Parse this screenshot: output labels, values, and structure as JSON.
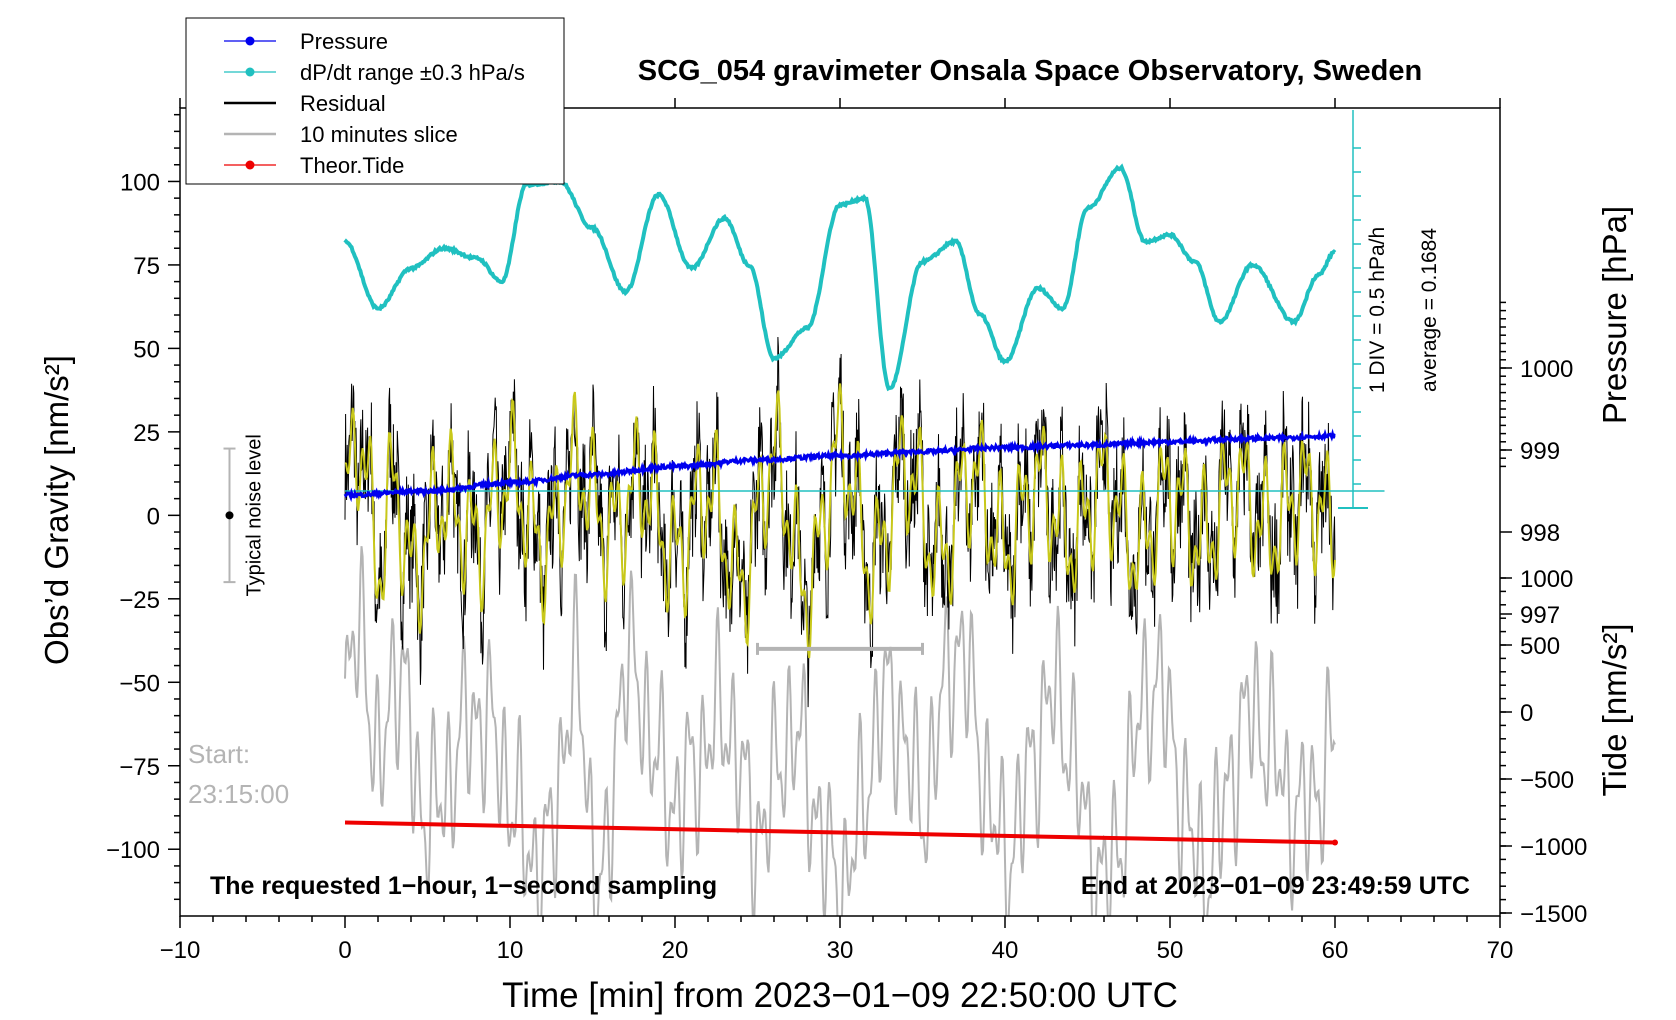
{
  "chart_data": {
    "type": "line",
    "title": "SCG_054 gravimeter Onsala Space Observatory, Sweden",
    "xlabel": "Time [min] from 2023−01−09 22:50:00 UTC",
    "ylabel_left": "Obs’d Gravity [nm/s²]",
    "ylabel_right_top": "Pressure [hPa]",
    "ylabel_right_bottom": "Tide [nm/s²]",
    "xlim": [
      -10,
      70
    ],
    "ylim": [
      -120,
      122
    ],
    "x_ticks": [
      -10,
      0,
      10,
      20,
      30,
      40,
      50,
      60,
      70
    ],
    "x_tick_labels": [
      "−10",
      "0",
      "10",
      "20",
      "30",
      "40",
      "50",
      "60",
      "70"
    ],
    "y_ticks": [
      100,
      75,
      50,
      25,
      0,
      -25,
      -50,
      -75,
      -100
    ],
    "y_tick_labels": [
      "100",
      "75",
      "50",
      "25",
      "0",
      "−25",
      "−50",
      "−75",
      "−100"
    ],
    "pressure_ticks": [
      1000,
      999,
      998,
      997
    ],
    "pressure_tick_labels": [
      "1000",
      "999",
      "998",
      "997"
    ],
    "tide_ticks": [
      1000,
      500,
      0,
      -500,
      -1000,
      -1500
    ],
    "tide_tick_labels": [
      "1000",
      "500",
      "0",
      "−500",
      "−1000",
      "−1500"
    ],
    "legend": [
      {
        "name": "Pressure",
        "color": "#0000ee",
        "marker": "dot"
      },
      {
        "name": "dP/dt range ±0.3 hPa/s",
        "color": "#20c0c0",
        "marker": "dot"
      },
      {
        "name": "Residual",
        "color": "#000000",
        "marker": "line"
      },
      {
        "name": "10 minutes slice",
        "color": "#b4b4b4",
        "marker": "line"
      },
      {
        "name": "Theor.Tide",
        "color": "#ee0000",
        "marker": "dot"
      }
    ],
    "legend_position": "top-left",
    "series": [
      {
        "name": "Pressure",
        "axis": "pressure_hPa",
        "x": [
          0,
          5,
          10,
          15,
          20,
          25,
          30,
          35,
          40,
          45,
          50,
          55,
          60
        ],
        "values": [
          998.45,
          998.5,
          998.6,
          998.7,
          998.8,
          998.88,
          998.93,
          998.98,
          999.03,
          999.06,
          999.1,
          999.14,
          999.17
        ]
      },
      {
        "name": "dP/dt",
        "axis": "gravity_scale",
        "x": [
          0,
          2,
          4,
          6,
          8,
          9.5,
          11,
          13,
          15,
          17,
          19,
          21,
          23,
          24.5,
          26,
          28,
          30,
          31.5,
          33,
          35,
          37,
          38.5,
          40,
          42,
          43.5,
          45,
          47,
          48.5,
          50,
          51.5,
          53,
          55,
          57.5,
          59,
          60
        ],
        "values": [
          82,
          62,
          74,
          80,
          77,
          70,
          99,
          100,
          86,
          67,
          96,
          74,
          89,
          75,
          47,
          56,
          93,
          95,
          38,
          76,
          82,
          60,
          46,
          68,
          62,
          92,
          104,
          82,
          84,
          76,
          58,
          75,
          58,
          72,
          79
        ]
      },
      {
        "name": "Residual",
        "axis": "gravity",
        "x": [
          0,
          1,
          2,
          3,
          4,
          6,
          8,
          10,
          12,
          14,
          16,
          18,
          20,
          22,
          24,
          26,
          28,
          30,
          32,
          34,
          36,
          38,
          40,
          42,
          44,
          46,
          48,
          50,
          52,
          54,
          56,
          58,
          60
        ],
        "values": [
          15,
          45,
          -30,
          20,
          -35,
          10,
          -15,
          25,
          -20,
          30,
          -10,
          20,
          -25,
          15,
          -40,
          35,
          -45,
          40,
          -30,
          30,
          -25,
          25,
          -20,
          20,
          -15,
          20,
          -20,
          15,
          -15,
          20,
          -10,
          15,
          -5
        ]
      },
      {
        "name": "10 minutes slice",
        "axis": "gravity",
        "x": [
          0,
          1,
          2,
          3,
          5,
          8,
          12,
          14,
          15.5,
          17,
          20,
          23,
          25,
          27,
          30,
          33,
          35,
          37,
          40,
          43,
          46,
          49,
          52,
          55,
          58,
          60
        ],
        "values": [
          -58,
          -30,
          -80,
          -45,
          -90,
          -60,
          -105,
          -50,
          -115,
          -45,
          -85,
          -60,
          -95,
          -65,
          -110,
          -55,
          -85,
          -40,
          -100,
          -55,
          -110,
          -50,
          -105,
          -60,
          -90,
          -70
        ]
      },
      {
        "name": "Theor.Tide",
        "axis": "gravity_scale",
        "x": [
          0,
          60
        ],
        "values": [
          -92,
          -98
        ]
      }
    ],
    "slice_bracket": {
      "x_start": 25,
      "x_end": 35,
      "y": -40
    },
    "noise_level": {
      "center": 0,
      "low": -20,
      "high": 20,
      "label": "Typical noise level"
    },
    "pressure_scale": {
      "label_div": "1 DIV = 0.5 hPa/h",
      "label_avg": "average = 0.1684"
    },
    "annotations": {
      "start_label": "Start:",
      "start_time": "23:15:00",
      "bottom_left": "The requested 1−hour, 1−second sampling",
      "bottom_right": "End at 2023−01−09 23:49:59 UTC"
    }
  }
}
